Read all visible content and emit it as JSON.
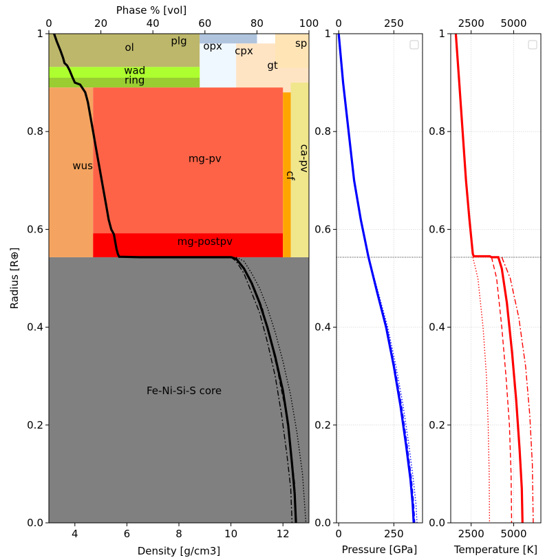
{
  "chart_data": [
    {
      "type": "area",
      "panel": "left",
      "xlabel": "Density [g/cm3]",
      "x2label": "Phase % [vol]",
      "ylabel": "Radius [R⊕]",
      "xlim": [
        3.0,
        13.0
      ],
      "x2lim": [
        0,
        100
      ],
      "ylim": [
        0.0,
        1.0
      ],
      "xticks": [
        4,
        6,
        8,
        10,
        12
      ],
      "x2ticks": [
        0,
        20,
        40,
        60,
        80,
        100
      ],
      "yticks": [
        0.0,
        0.2,
        0.4,
        0.6,
        0.8,
        1.0
      ],
      "core_mantle_boundary_radius": 0.543,
      "core_label": "Fe-Ni-Si-S core",
      "core_color": "#808080",
      "phases": [
        {
          "name": "ol",
          "color": "#bdb76b",
          "r_min": 0.932,
          "r_max": 1.0,
          "vol_pct": [
            0,
            58
          ]
        },
        {
          "name": "plg",
          "color": "#b0c4de",
          "r_min": 0.98,
          "r_max": 1.0,
          "vol_pct": [
            58,
            80
          ]
        },
        {
          "name": "opx",
          "color": "#b0c4de",
          "r_min": 0.98,
          "r_max": 1.0,
          "vol_pct": [
            58,
            80
          ]
        },
        {
          "name": "cpx",
          "color": "#f0f8ff",
          "r_min": 0.89,
          "r_max": 0.98,
          "vol_pct": [
            58,
            88
          ]
        },
        {
          "name": "gt",
          "color": "#ffe4c4",
          "r_min": 0.87,
          "r_max": 0.98,
          "vol_pct": [
            72,
            100
          ]
        },
        {
          "name": "sp",
          "color": "#ffe4b5",
          "r_min": 0.93,
          "r_max": 1.0,
          "vol_pct": [
            87,
            100
          ]
        },
        {
          "name": "wad",
          "color": "#adff2f",
          "r_min": 0.91,
          "r_max": 0.932,
          "vol_pct": [
            0,
            58
          ]
        },
        {
          "name": "ring",
          "color": "#9acd32",
          "r_min": 0.89,
          "r_max": 0.91,
          "vol_pct": [
            0,
            58
          ]
        },
        {
          "name": "wus",
          "color": "#f4a460",
          "r_min": 0.543,
          "r_max": 0.89,
          "vol_pct": [
            0,
            17
          ]
        },
        {
          "name": "mg-pv",
          "color": "#ff6347",
          "r_min": 0.592,
          "r_max": 0.89,
          "vol_pct": [
            17,
            90
          ]
        },
        {
          "name": "mg-postpv",
          "color": "#ff0000",
          "r_min": 0.543,
          "r_max": 0.592,
          "vol_pct": [
            17,
            90
          ]
        },
        {
          "name": "cf",
          "color": "#ffa500",
          "r_min": 0.543,
          "r_max": 0.88,
          "vol_pct": [
            90,
            93
          ]
        },
        {
          "name": "ca-pv",
          "color": "#f0e68c",
          "r_min": 0.543,
          "r_max": 0.9,
          "vol_pct": [
            93,
            100
          ]
        }
      ],
      "series": [
        {
          "style": "solid",
          "points": [
            [
              3.2,
              1.0
            ],
            [
              3.3,
              0.985
            ],
            [
              3.45,
              0.965
            ],
            [
              3.55,
              0.95
            ],
            [
              3.6,
              0.94
            ],
            [
              3.7,
              0.935
            ],
            [
              3.8,
              0.925
            ],
            [
              3.9,
              0.912
            ],
            [
              4.0,
              0.9
            ],
            [
              4.2,
              0.896
            ],
            [
              4.4,
              0.88
            ],
            [
              4.5,
              0.86
            ],
            [
              4.6,
              0.83
            ],
            [
              4.7,
              0.8
            ],
            [
              4.8,
              0.77
            ],
            [
              4.9,
              0.74
            ],
            [
              5.0,
              0.71
            ],
            [
              5.1,
              0.68
            ],
            [
              5.2,
              0.65
            ],
            [
              5.3,
              0.62
            ],
            [
              5.4,
              0.6
            ],
            [
              5.5,
              0.59
            ],
            [
              5.55,
              0.575
            ],
            [
              5.6,
              0.56
            ],
            [
              5.65,
              0.55
            ],
            [
              5.7,
              0.544
            ],
            [
              6.5,
              0.543
            ],
            [
              8.0,
              0.543
            ],
            [
              9.0,
              0.543
            ],
            [
              10.0,
              0.543
            ],
            [
              10.2,
              0.54
            ],
            [
              10.5,
              0.52
            ],
            [
              10.8,
              0.49
            ],
            [
              11.1,
              0.45
            ],
            [
              11.4,
              0.4
            ],
            [
              11.7,
              0.34
            ],
            [
              12.0,
              0.27
            ],
            [
              12.2,
              0.2
            ],
            [
              12.35,
              0.12
            ],
            [
              12.45,
              0.06
            ],
            [
              12.5,
              0.0
            ]
          ]
        },
        {
          "style": "dashed",
          "points": [
            [
              10.05,
              0.543
            ],
            [
              10.3,
              0.535
            ],
            [
              10.6,
              0.51
            ],
            [
              10.9,
              0.48
            ],
            [
              11.2,
              0.44
            ],
            [
              11.5,
              0.38
            ],
            [
              11.8,
              0.31
            ],
            [
              12.1,
              0.23
            ],
            [
              12.3,
              0.15
            ],
            [
              12.45,
              0.08
            ],
            [
              12.5,
              0.0
            ]
          ]
        },
        {
          "style": "dashdot",
          "points": [
            [
              10.0,
              0.543
            ],
            [
              10.2,
              0.535
            ],
            [
              10.5,
              0.51
            ],
            [
              10.8,
              0.47
            ],
            [
              11.1,
              0.43
            ],
            [
              11.4,
              0.37
            ],
            [
              11.7,
              0.3
            ],
            [
              11.95,
              0.22
            ],
            [
              12.15,
              0.14
            ],
            [
              12.3,
              0.07
            ],
            [
              12.35,
              0.0
            ]
          ]
        },
        {
          "style": "dotted",
          "points": [
            [
              10.2,
              0.543
            ],
            [
              10.5,
              0.535
            ],
            [
              10.8,
              0.51
            ],
            [
              11.1,
              0.48
            ],
            [
              11.4,
              0.44
            ],
            [
              11.7,
              0.39
            ],
            [
              12.0,
              0.33
            ],
            [
              12.3,
              0.26
            ],
            [
              12.55,
              0.18
            ],
            [
              12.75,
              0.1
            ],
            [
              12.88,
              0.0
            ]
          ]
        }
      ]
    },
    {
      "type": "line",
      "panel": "pressure",
      "xlabel": "Pressure [GPa]",
      "xlim": [
        -10,
        380
      ],
      "ylim": [
        0.0,
        1.0
      ],
      "xticks": [
        0,
        250
      ],
      "x2ticks": [
        0,
        250
      ],
      "yticks": [
        0.0,
        0.2,
        0.4,
        0.6,
        0.8,
        1.0
      ],
      "grid": true,
      "legend": "top-right",
      "cmb_radius": 0.543,
      "series": [
        {
          "style": "solid",
          "points": [
            [
              0,
              1.0
            ],
            [
              20,
              0.9
            ],
            [
              45,
              0.8
            ],
            [
              70,
              0.7
            ],
            [
              100,
              0.62
            ],
            [
              135,
              0.543
            ],
            [
              175,
              0.47
            ],
            [
              215,
              0.4
            ],
            [
              250,
              0.32
            ],
            [
              280,
              0.24
            ],
            [
              305,
              0.16
            ],
            [
              325,
              0.09
            ],
            [
              335,
              0.04
            ],
            [
              340,
              0.0
            ]
          ]
        },
        {
          "style": "dotted",
          "points": [
            [
              0,
              1.0
            ],
            [
              20,
              0.9
            ],
            [
              45,
              0.8
            ],
            [
              70,
              0.7
            ],
            [
              100,
              0.62
            ],
            [
              135,
              0.543
            ],
            [
              180,
              0.47
            ],
            [
              222,
              0.4
            ],
            [
              260,
              0.32
            ],
            [
              292,
              0.24
            ],
            [
              318,
              0.16
            ],
            [
              338,
              0.09
            ],
            [
              350,
              0.04
            ],
            [
              355,
              0.0
            ]
          ]
        },
        {
          "style": "dashed",
          "points": [
            [
              0,
              1.0
            ],
            [
              20,
              0.9
            ],
            [
              45,
              0.8
            ],
            [
              70,
              0.7
            ],
            [
              100,
              0.62
            ],
            [
              135,
              0.543
            ],
            [
              177,
              0.47
            ],
            [
              218,
              0.4
            ],
            [
              254,
              0.32
            ],
            [
              285,
              0.24
            ],
            [
              310,
              0.16
            ],
            [
              330,
              0.09
            ],
            [
              340,
              0.04
            ],
            [
              345,
              0.0
            ]
          ]
        }
      ]
    },
    {
      "type": "line",
      "panel": "temperature",
      "xlabel": "Temperature [K]",
      "xlim": [
        1300,
        6600
      ],
      "ylim": [
        0.0,
        1.0
      ],
      "xticks": [
        2500,
        5000
      ],
      "x2ticks": [
        2500,
        5000
      ],
      "yticks": [
        0.0,
        0.2,
        0.4,
        0.6,
        0.8,
        1.0
      ],
      "grid": true,
      "legend": "top-right",
      "cmb_radius": 0.543,
      "series": [
        {
          "style": "solid",
          "points": [
            [
              1600,
              1.0
            ],
            [
              1800,
              0.9
            ],
            [
              2000,
              0.8
            ],
            [
              2200,
              0.7
            ],
            [
              2400,
              0.62
            ],
            [
              2600,
              0.55
            ],
            [
              2650,
              0.545
            ],
            [
              3000,
              0.545
            ],
            [
              3600,
              0.545
            ],
            [
              3700,
              0.543
            ],
            [
              4100,
              0.543
            ],
            [
              4300,
              0.52
            ],
            [
              4600,
              0.45
            ],
            [
              4900,
              0.35
            ],
            [
              5150,
              0.25
            ],
            [
              5350,
              0.15
            ],
            [
              5480,
              0.07
            ],
            [
              5520,
              0.0
            ]
          ]
        },
        {
          "style": "dotted",
          "points": [
            [
              2600,
              0.543
            ],
            [
              2900,
              0.5
            ],
            [
              3200,
              0.4
            ],
            [
              3400,
              0.3
            ],
            [
              3500,
              0.2
            ],
            [
              3560,
              0.1
            ],
            [
              3580,
              0.0
            ]
          ]
        },
        {
          "style": "dashed",
          "points": [
            [
              3700,
              0.543
            ],
            [
              4000,
              0.5
            ],
            [
              4300,
              0.4
            ],
            [
              4550,
              0.3
            ],
            [
              4750,
              0.2
            ],
            [
              4850,
              0.1
            ],
            [
              4880,
              0.0
            ]
          ]
        },
        {
          "style": "dashdot",
          "points": [
            [
              4300,
              0.543
            ],
            [
              4800,
              0.5
            ],
            [
              5300,
              0.42
            ],
            [
              5700,
              0.32
            ],
            [
              5950,
              0.22
            ],
            [
              6100,
              0.12
            ],
            [
              6150,
              0.0
            ]
          ]
        }
      ]
    }
  ]
}
